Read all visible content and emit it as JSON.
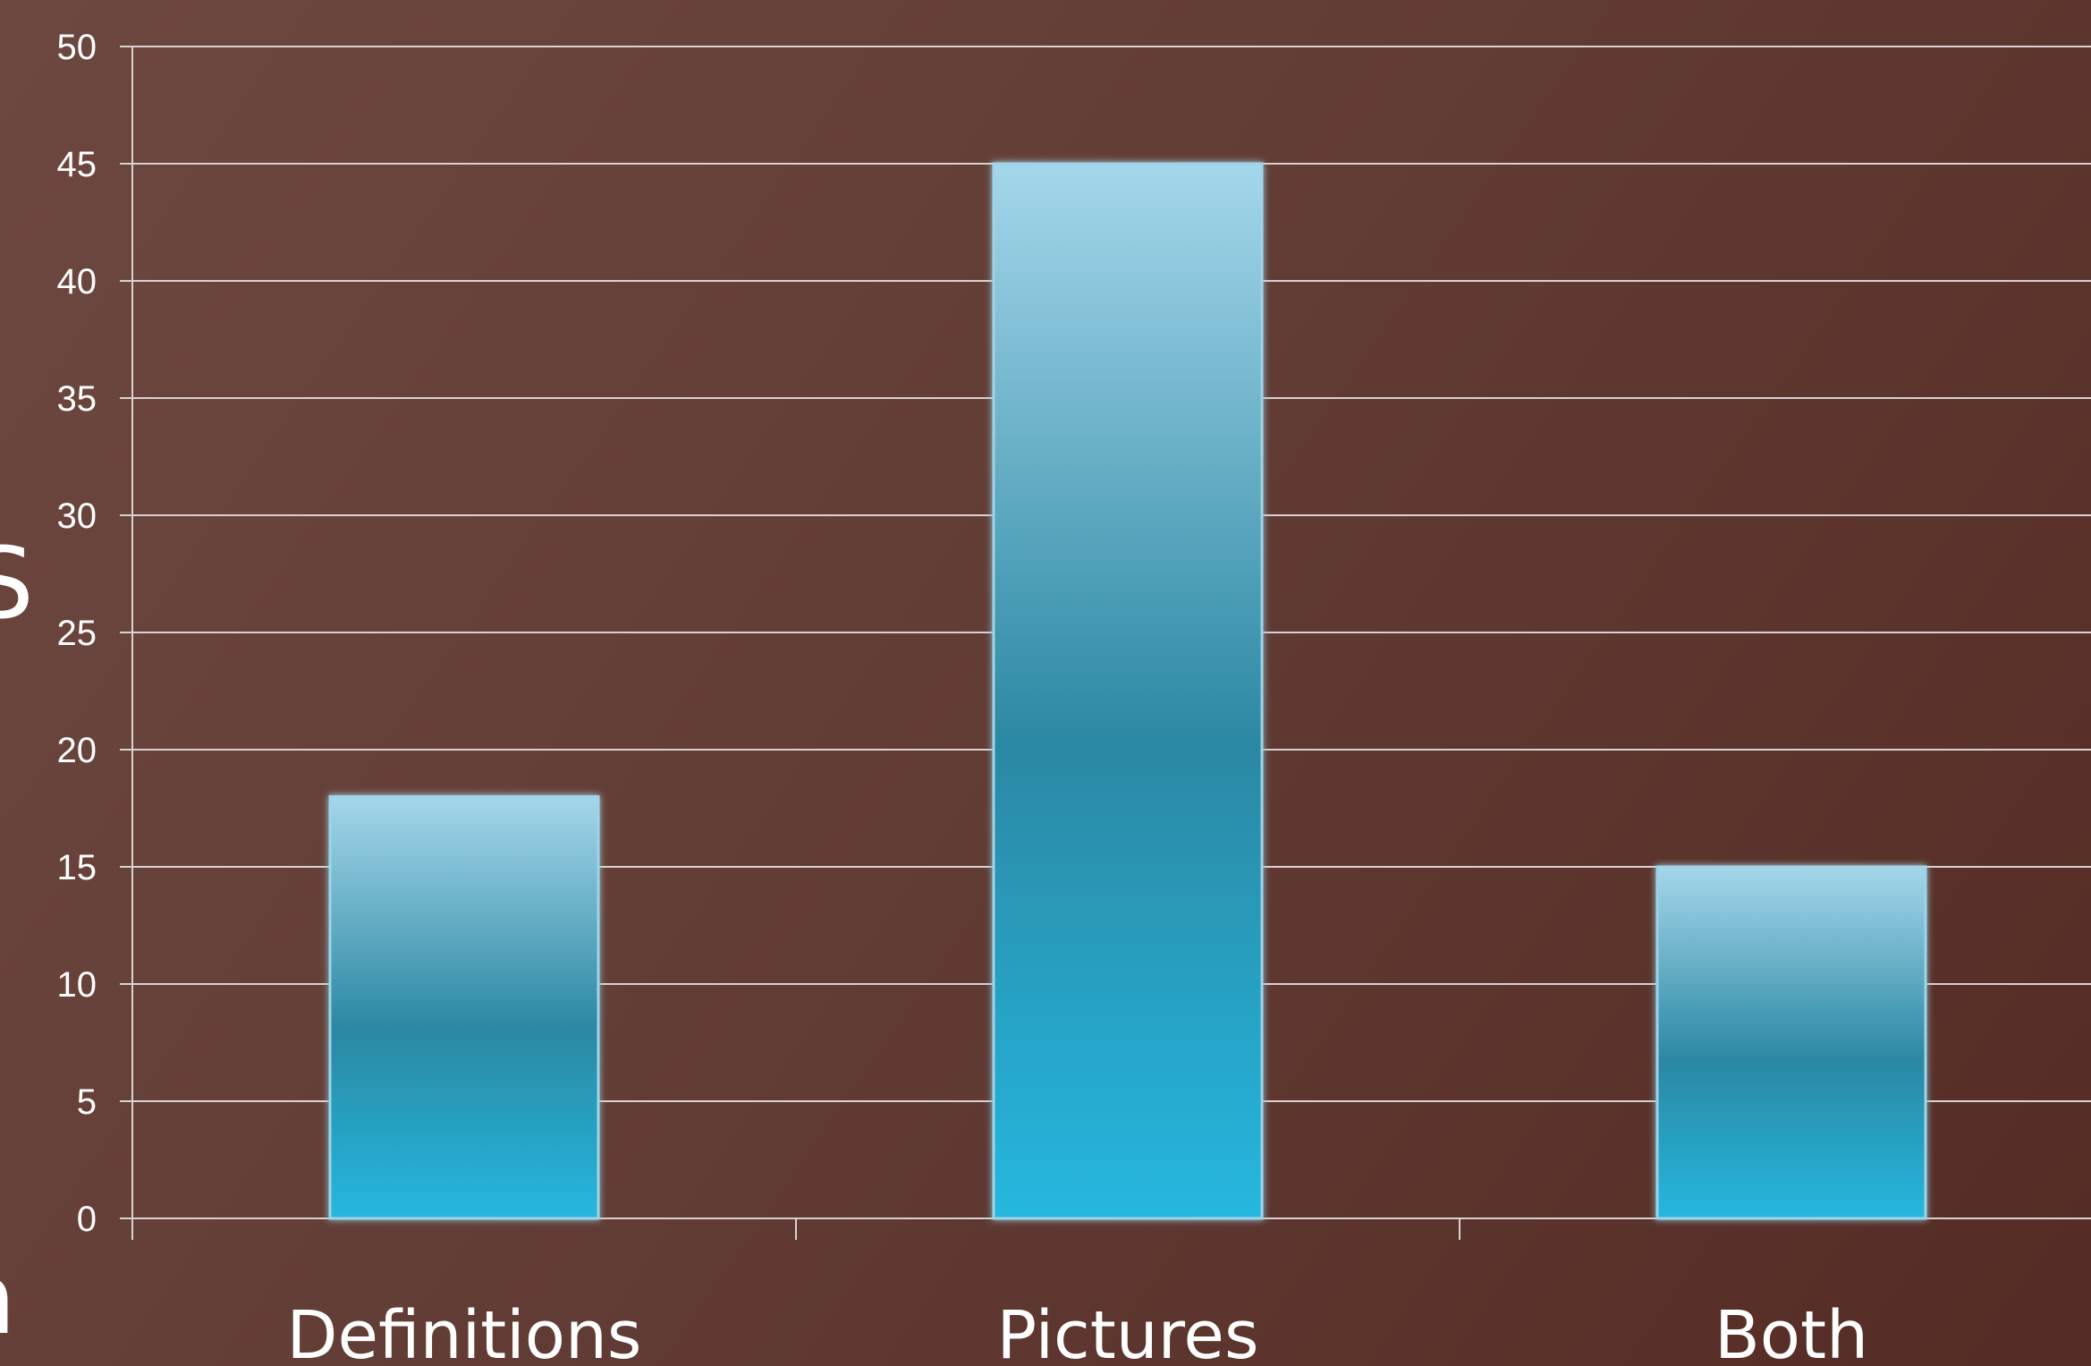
{
  "chart_data": {
    "type": "bar",
    "categories": [
      "Definitions",
      "Pictures",
      "Both"
    ],
    "values": [
      18,
      45,
      15
    ],
    "title": "",
    "xlabel": "",
    "ylabel": "",
    "ylim": [
      0,
      50
    ],
    "y_ticks": [
      0,
      5,
      10,
      15,
      20,
      25,
      30,
      35,
      40,
      45,
      50
    ],
    "grid": true,
    "legend": "none"
  },
  "colors": {
    "background_start": "#6d4840",
    "background_end": "#552c25",
    "bar_top": "#a4d6ea",
    "bar_mid": "#2b88a3",
    "bar_bottom": "#25b7df",
    "bar_outline": "#9fd3e6",
    "gridline": "#d9d2cf",
    "text": "#ffffff"
  }
}
